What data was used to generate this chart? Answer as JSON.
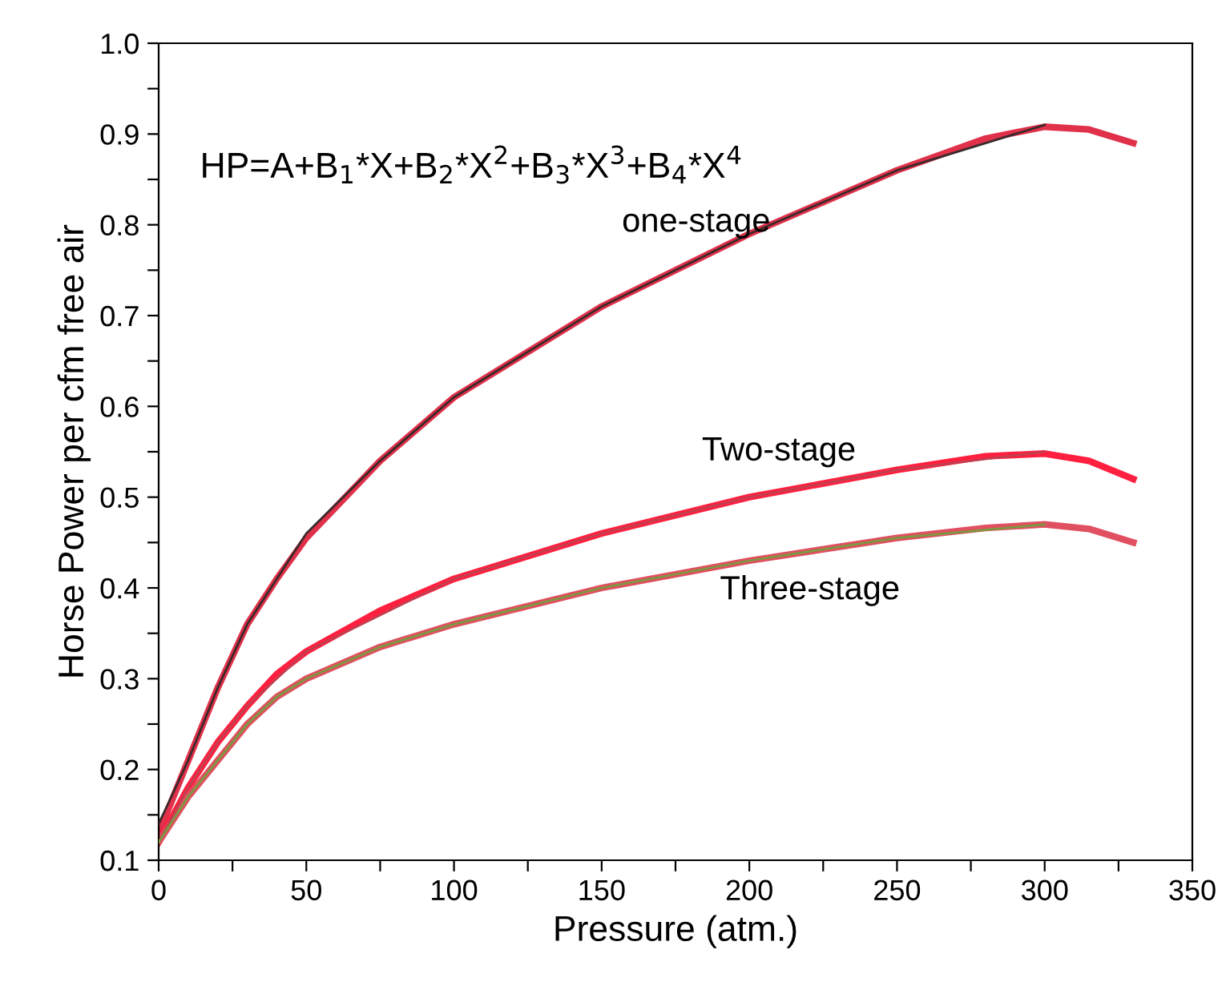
{
  "chart_data": {
    "type": "line",
    "xlabel": "Pressure (atm.)",
    "ylabel": "Horse Power per cfm free air",
    "xlim": [
      0,
      350
    ],
    "ylim": [
      0.1,
      1.0
    ],
    "xticks": [
      0,
      {
        "value": 25,
        "label": null
      },
      50,
      {
        "value": 75,
        "label": null
      },
      100,
      {
        "value": 125,
        "label": null
      },
      150,
      {
        "value": 175,
        "label": null
      },
      200,
      {
        "value": 225,
        "label": null
      },
      250,
      {
        "value": 275,
        "label": null
      },
      300,
      {
        "value": 325,
        "label": null
      },
      350
    ],
    "yticks": [
      0.1,
      {
        "value": 0.15,
        "label": null
      },
      0.2,
      {
        "value": 0.25,
        "label": null
      },
      0.3,
      {
        "value": 0.35,
        "label": null
      },
      0.4,
      {
        "value": 0.45,
        "label": null
      },
      0.5,
      {
        "value": 0.55,
        "label": null
      },
      0.6,
      {
        "value": 0.65,
        "label": null
      },
      0.7,
      {
        "value": 0.75,
        "label": null
      },
      0.8,
      {
        "value": 0.85,
        "label": null
      },
      0.9,
      {
        "value": 0.95,
        "label": null
      },
      {
        "value": 1.0,
        "label": "1.0"
      }
    ],
    "grid": false,
    "legend": false,
    "series": [
      {
        "color": "#3a2a2a",
        "x": [
          0,
          10,
          20,
          30,
          40,
          50,
          75,
          100,
          150,
          200,
          250,
          300
        ],
        "values": [
          0.14,
          0.21,
          0.29,
          0.36,
          0.41,
          0.46,
          0.54,
          0.61,
          0.71,
          0.79,
          0.86,
          0.91
        ]
      },
      {
        "color": "#e0304a",
        "x": [
          0,
          10,
          20,
          30,
          40,
          50,
          75,
          100,
          150,
          200,
          250,
          280,
          300,
          315,
          330
        ],
        "values": [
          0.13,
          0.21,
          0.29,
          0.36,
          0.41,
          0.455,
          0.54,
          0.61,
          0.71,
          0.79,
          0.86,
          0.895,
          0.908,
          0.905,
          0.89
        ]
      },
      {
        "color": "#c04050",
        "x": [
          0,
          10,
          20,
          30,
          40,
          50,
          75,
          100,
          150,
          200,
          250,
          300
        ],
        "values": [
          0.12,
          0.18,
          0.23,
          0.27,
          0.3,
          0.33,
          0.37,
          0.41,
          0.46,
          0.5,
          0.53,
          0.55
        ]
      },
      {
        "color": "#ff2040",
        "x": [
          0,
          10,
          20,
          30,
          40,
          50,
          75,
          100,
          150,
          200,
          250,
          280,
          300,
          315,
          330
        ],
        "values": [
          0.12,
          0.18,
          0.23,
          0.27,
          0.305,
          0.33,
          0.375,
          0.41,
          0.46,
          0.5,
          0.53,
          0.545,
          0.548,
          0.54,
          0.52
        ]
      },
      {
        "color": "#7a9a40",
        "x": [
          0,
          10,
          20,
          30,
          40,
          50,
          75,
          100,
          150,
          200,
          250,
          300
        ],
        "values": [
          0.12,
          0.17,
          0.21,
          0.25,
          0.28,
          0.3,
          0.335,
          0.36,
          0.4,
          0.43,
          0.455,
          0.47
        ]
      },
      {
        "color": "#e05060",
        "x": [
          0,
          10,
          20,
          30,
          40,
          50,
          75,
          100,
          150,
          200,
          250,
          280,
          300,
          315,
          330
        ],
        "values": [
          0.12,
          0.17,
          0.21,
          0.25,
          0.28,
          0.3,
          0.335,
          0.36,
          0.4,
          0.43,
          0.455,
          0.466,
          0.47,
          0.465,
          0.45
        ]
      }
    ],
    "annotations": [
      {
        "text": "HP=A+B$_{1}$*X+B$_{2}$*X$^{2}$+B$_{3}$*X$^{3}$+B$_{4}$*X$^{4}$"
      },
      "one-stage",
      "Two-stage",
      "Three-stage"
    ]
  }
}
